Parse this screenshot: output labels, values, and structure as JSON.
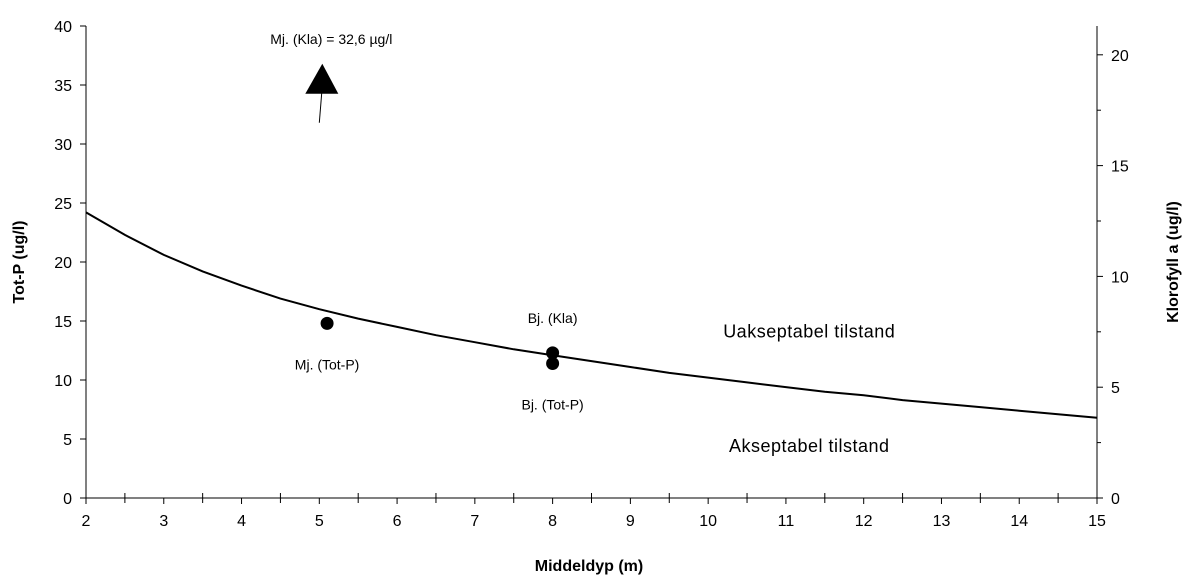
{
  "chart_data": {
    "type": "line",
    "xlabel": "Middeldyp (m)",
    "ylabel": "Tot-P (ug/l)",
    "y2label": "Klorofyll a (ug/l)",
    "xlim": [
      2,
      15
    ],
    "ylim": [
      0,
      40
    ],
    "y2lim": [
      0,
      21.3
    ],
    "x_ticks": [
      2,
      3,
      4,
      5,
      6,
      7,
      8,
      9,
      10,
      11,
      12,
      13,
      14,
      15
    ],
    "y_ticks": [
      0,
      5,
      10,
      15,
      20,
      25,
      30,
      35,
      40
    ],
    "y2_ticks": [
      0,
      5,
      10,
      15,
      20
    ],
    "curve": {
      "x": [
        2,
        2.5,
        3,
        3.5,
        4,
        4.5,
        5,
        5.5,
        6,
        6.5,
        7,
        7.5,
        8,
        8.5,
        9,
        9.5,
        10,
        10.5,
        11,
        11.5,
        12,
        12.5,
        13,
        13.5,
        14,
        14.5,
        15
      ],
      "y": [
        24.2,
        22.3,
        20.6,
        19.2,
        18.0,
        16.9,
        16.0,
        15.2,
        14.5,
        13.8,
        13.2,
        12.6,
        12.1,
        11.6,
        11.1,
        10.6,
        10.2,
        9.8,
        9.4,
        9.0,
        8.7,
        8.3,
        8.0,
        7.7,
        7.4,
        7.1,
        6.8
      ]
    },
    "points": [
      {
        "label": "Mj. (Tot-P)",
        "x": 5.1,
        "y": 14.8
      },
      {
        "label": "Bj. (Kla)",
        "x": 8.0,
        "y": 12.3
      },
      {
        "label": "Bj. (Tot-P)",
        "x": 8.0,
        "y": 11.4
      }
    ],
    "arrow_annotation": {
      "label": "Mj. (Kla) = 32,6 µg/l",
      "x": 5.0,
      "y_tip": 36.8,
      "y_tail": 31.8
    },
    "regions": [
      {
        "label": "Uakseptabel tilstand",
        "x": 11.3,
        "y": 13.6
      },
      {
        "label": "Akseptabel tilstand",
        "x": 11.3,
        "y": 3.9
      }
    ]
  }
}
